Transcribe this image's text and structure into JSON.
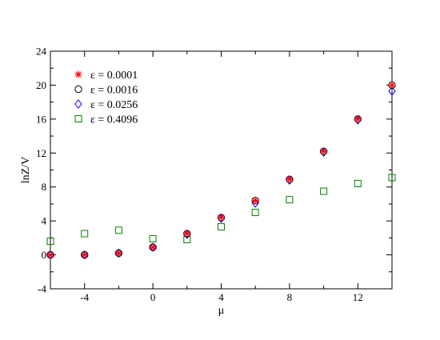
{
  "chart_data": {
    "type": "scatter",
    "title": "",
    "xlabel": "μ",
    "ylabel": "lnZ/V",
    "xlim": [
      -6,
      14
    ],
    "ylim": [
      -4,
      24
    ],
    "xticks": [
      -4,
      0,
      4,
      8,
      12
    ],
    "xtick_labels": [
      "-4",
      "0",
      "4",
      "8",
      "12"
    ],
    "yticks": [
      -4,
      0,
      4,
      8,
      12,
      16,
      20,
      24
    ],
    "ytick_labels": [
      "-4",
      "0",
      "4",
      "8",
      "12",
      "16",
      "20",
      "24"
    ],
    "grid": false,
    "legend_position": "top-left",
    "x": [
      -6,
      -4,
      -2,
      0,
      2,
      4,
      6,
      8,
      10,
      12,
      14
    ],
    "series": [
      {
        "name": "ε = 0.0001",
        "marker": "asterisk",
        "color": "#ff0000",
        "values": [
          0.0,
          0.0,
          0.2,
          0.9,
          2.5,
          4.4,
          6.4,
          8.9,
          12.2,
          16.0,
          20.0
        ]
      },
      {
        "name": "ε = 0.0016",
        "marker": "circle",
        "color": "#000000",
        "values": [
          0.0,
          0.0,
          0.2,
          0.9,
          2.5,
          4.4,
          6.4,
          8.9,
          12.2,
          16.0,
          20.0
        ]
      },
      {
        "name": "ε = 0.0256",
        "marker": "diamond",
        "color": "#0000ff",
        "values": [
          0.0,
          0.0,
          0.2,
          0.9,
          2.4,
          4.3,
          6.1,
          8.8,
          12.1,
          15.9,
          19.3
        ]
      },
      {
        "name": "ε = 0.4096",
        "marker": "square",
        "color": "#008000",
        "values": [
          1.6,
          2.5,
          2.9,
          1.9,
          1.8,
          3.3,
          5.0,
          6.5,
          7.5,
          8.4,
          9.1
        ]
      }
    ]
  }
}
